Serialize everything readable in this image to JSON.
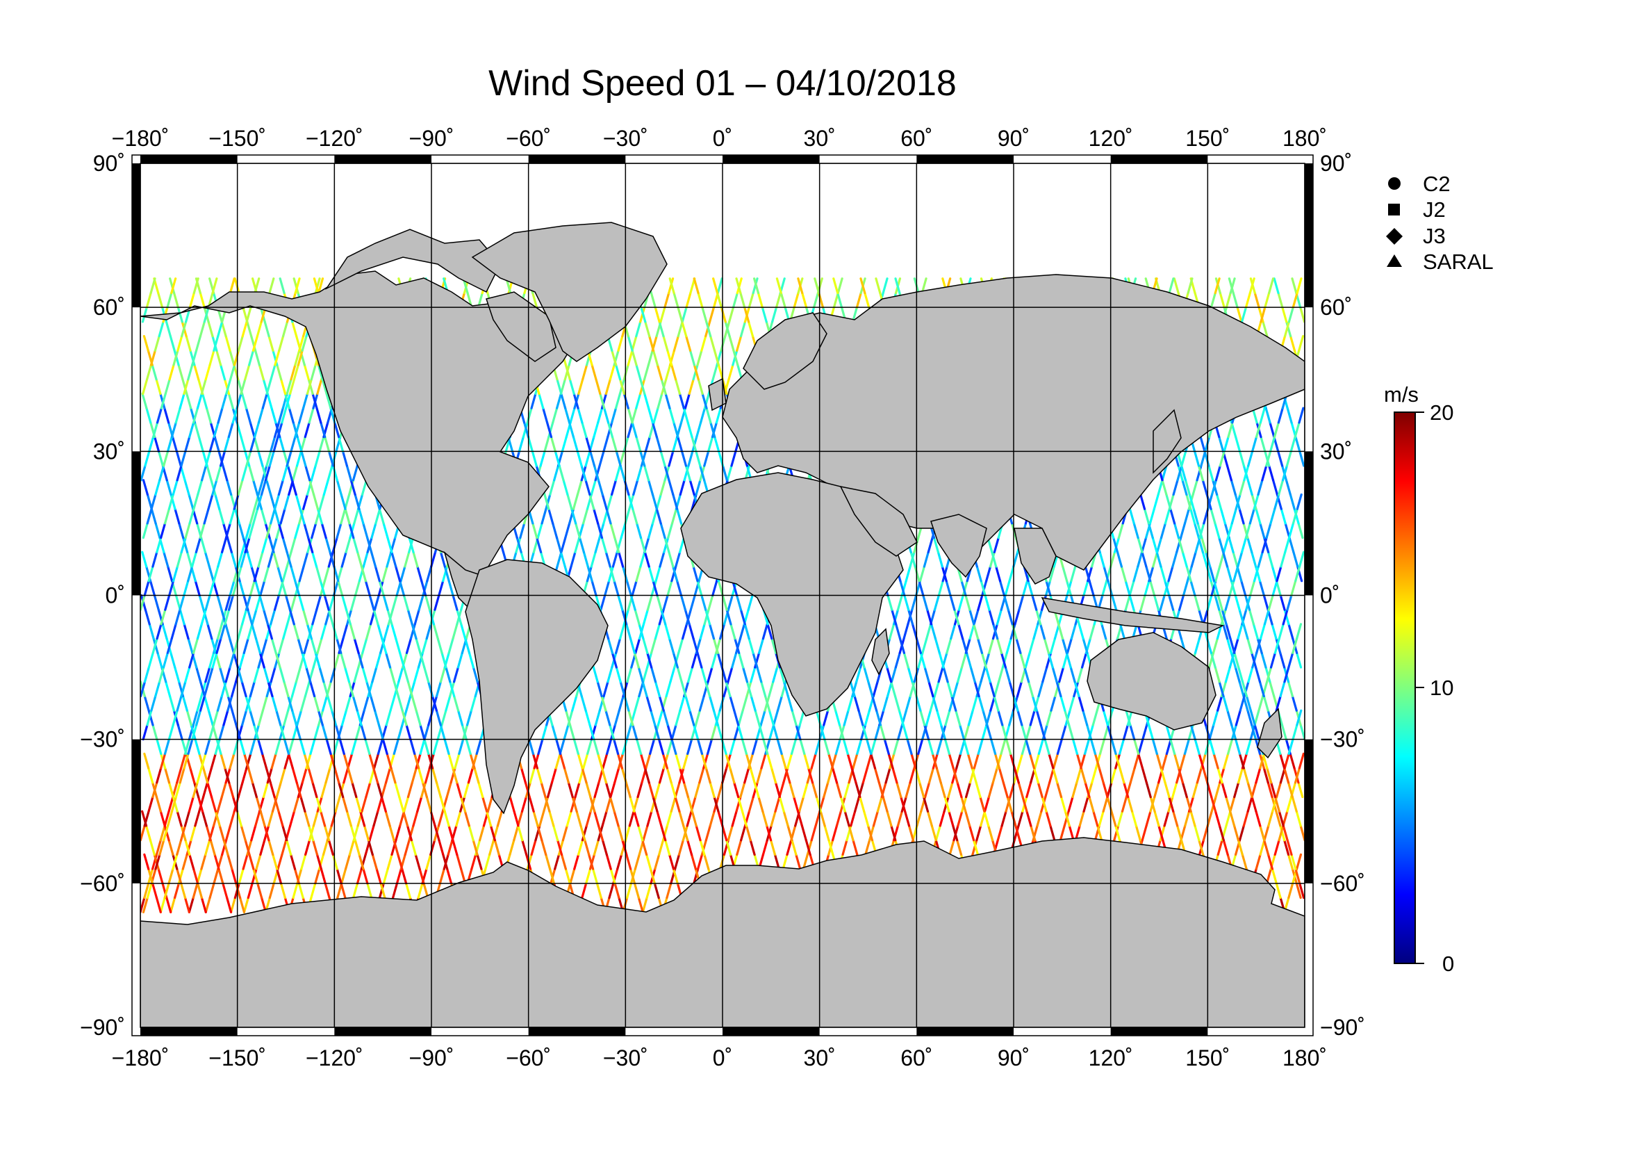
{
  "title": "Wind Speed 01 – 04/10/2018",
  "lon_ticks": [
    "−180",
    "−150",
    "−120",
    "−90",
    "−60",
    "−30",
    "0",
    "30",
    "60",
    "90",
    "120",
    "150",
    "180"
  ],
  "lat_ticks": [
    "90",
    "60",
    "30",
    "0",
    "−30",
    "−60",
    "−90"
  ],
  "degree_mark": "˚",
  "legend": [
    {
      "symbol": "circle",
      "label": "C2"
    },
    {
      "symbol": "square",
      "label": "J2"
    },
    {
      "symbol": "diamond",
      "label": "J3"
    },
    {
      "symbol": "triangle",
      "label": "SARAL"
    }
  ],
  "colorbar": {
    "unit": "m/s",
    "min_label": "0",
    "mid_label": "10",
    "max_label": "20",
    "range": [
      0,
      20
    ],
    "colormap": "jet",
    "colors": [
      "#00007f",
      "#0000ff",
      "#007fff",
      "#00ffff",
      "#7fff7f",
      "#ffff00",
      "#ff7f00",
      "#ff0000",
      "#7f0000"
    ]
  },
  "map": {
    "projection": "equirectangular",
    "lon_range": [
      -180,
      180
    ],
    "lat_range": [
      -90,
      90
    ],
    "land_color": "#bebebe",
    "ocean_color": "#ffffff",
    "grid": true
  }
}
